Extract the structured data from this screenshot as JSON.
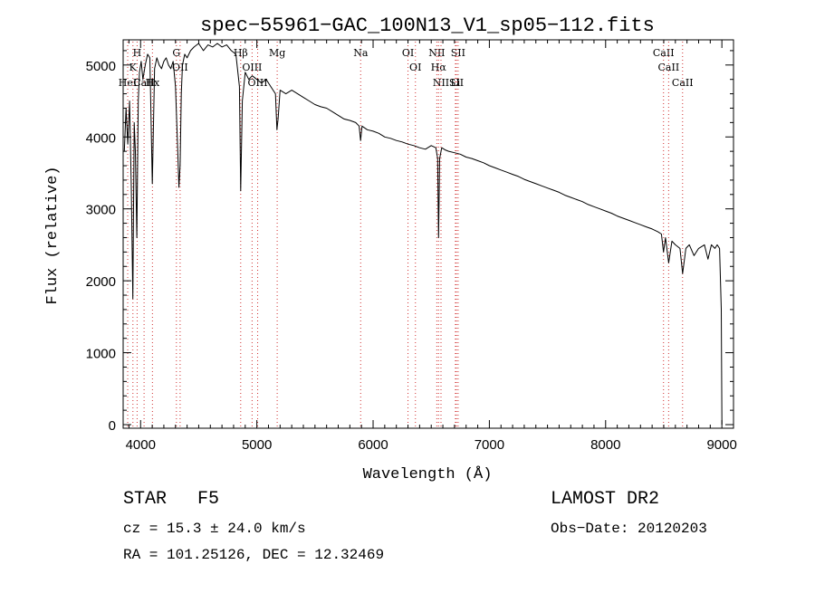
{
  "chart_data": {
    "type": "line",
    "title": "spec−55961−GAC_100N13_V1_sp05−112.fits",
    "xlabel": "Wavelength (Å)",
    "ylabel": "Flux (relative)",
    "xlim": [
      3850,
      9100
    ],
    "ylim": [
      -50,
      5350
    ],
    "xticks": [
      4000,
      5000,
      6000,
      7000,
      8000,
      9000
    ],
    "yticks": [
      0,
      1000,
      2000,
      3000,
      4000,
      5000
    ],
    "grid": false,
    "legend": "none",
    "series": [
      {
        "x": [
          3860,
          3875,
          3890,
          3905,
          3920,
          3933,
          3945,
          3955,
          3968,
          3980,
          3990,
          4005,
          4020,
          4040,
          4060,
          4080,
          4101,
          4120,
          4140,
          4160,
          4180,
          4200,
          4220,
          4240,
          4260,
          4280,
          4300,
          4320,
          4330,
          4340,
          4350,
          4360,
          4380,
          4400,
          4430,
          4460,
          4500,
          4540,
          4580,
          4620,
          4660,
          4700,
          4740,
          4780,
          4820,
          4850,
          4861,
          4875,
          4900,
          4930,
          4960,
          5000,
          5040,
          5080,
          5120,
          5160,
          5173,
          5183,
          5200,
          5250,
          5300,
          5350,
          5400,
          5450,
          5500,
          5550,
          5600,
          5650,
          5700,
          5750,
          5800,
          5850,
          5880,
          5892,
          5905,
          5950,
          6000,
          6050,
          6100,
          6150,
          6200,
          6250,
          6300,
          6350,
          6400,
          6450,
          6500,
          6540,
          6555,
          6563,
          6572,
          6590,
          6620,
          6650,
          6700,
          6750,
          6800,
          6850,
          6900,
          6950,
          7000,
          7050,
          7100,
          7150,
          7200,
          7250,
          7300,
          7350,
          7400,
          7450,
          7500,
          7550,
          7600,
          7650,
          7700,
          7750,
          7800,
          7850,
          7900,
          7950,
          8000,
          8050,
          8100,
          8150,
          8200,
          8250,
          8300,
          8350,
          8400,
          8450,
          8480,
          8498,
          8515,
          8542,
          8570,
          8600,
          8640,
          8662,
          8690,
          8720,
          8760,
          8800,
          8850,
          8880,
          8910,
          8940,
          8960,
          8980,
          8995,
          9000
        ],
        "values": [
          3800,
          4400,
          3900,
          4500,
          3300,
          1750,
          4200,
          3800,
          2600,
          4500,
          4900,
          5050,
          4800,
          5000,
          5150,
          5100,
          3350,
          4950,
          5100,
          5000,
          4950,
          5050,
          5100,
          5000,
          4950,
          5050,
          4700,
          3800,
          3300,
          3600,
          4600,
          5000,
          5150,
          5100,
          5200,
          5250,
          5300,
          5200,
          5280,
          5250,
          5300,
          5250,
          5280,
          5200,
          5150,
          4700,
          3250,
          4500,
          4900,
          4800,
          4850,
          4800,
          4750,
          4800,
          4700,
          4600,
          4100,
          4250,
          4650,
          4600,
          4650,
          4600,
          4550,
          4500,
          4450,
          4420,
          4400,
          4350,
          4300,
          4250,
          4230,
          4200,
          4150,
          3950,
          4150,
          4100,
          4080,
          4050,
          4000,
          3980,
          3950,
          3930,
          3900,
          3880,
          3850,
          3830,
          3880,
          3850,
          3700,
          2600,
          3700,
          3850,
          3820,
          3800,
          3780,
          3760,
          3720,
          3700,
          3670,
          3640,
          3600,
          3570,
          3540,
          3510,
          3480,
          3450,
          3410,
          3380,
          3350,
          3320,
          3290,
          3260,
          3230,
          3190,
          3160,
          3130,
          3100,
          3060,
          3030,
          3000,
          2970,
          2940,
          2900,
          2870,
          2840,
          2810,
          2780,
          2750,
          2720,
          2680,
          2650,
          2400,
          2600,
          2250,
          2550,
          2500,
          2450,
          2100,
          2450,
          2500,
          2350,
          2450,
          2500,
          2300,
          2500,
          2450,
          2500,
          2450,
          1600,
          0
        ]
      }
    ],
    "lines": [
      {
        "label": "H",
        "x": 3970
      },
      {
        "label": "K",
        "x": 3934
      },
      {
        "label": "HeI",
        "x": 3889
      },
      {
        "label": "CaII",
        "x": 4030
      },
      {
        "label": "G",
        "x": 4308
      },
      {
        "label": "OII",
        "x": 4340
      },
      {
        "label": "Hx",
        "x": 4102
      },
      {
        "label": "Hβ",
        "x": 4861
      },
      {
        "label": "OIII",
        "x": 4959
      },
      {
        "label": "OIII",
        "x": 5007
      },
      {
        "label": "Mg",
        "x": 5175
      },
      {
        "label": "Na",
        "x": 5893
      },
      {
        "label": "OI",
        "x": 6300
      },
      {
        "label": "OI",
        "x": 6364
      },
      {
        "label": "NII",
        "x": 6548
      },
      {
        "label": "Hα",
        "x": 6563
      },
      {
        "label": "NII",
        "x": 6584
      },
      {
        "label": "SII",
        "x": 6716
      },
      {
        "label": "SII",
        "x": 6731
      },
      {
        "label": "Li",
        "x": 6708
      },
      {
        "label": "CaII",
        "x": 8498
      },
      {
        "label": "CaII",
        "x": 8542
      },
      {
        "label": "CaII",
        "x": 8662
      }
    ]
  },
  "info": {
    "class_label": "STAR",
    "subclass": "F5",
    "survey": "LAMOST DR2",
    "cz": "cz = 15.3 ± 24.0 km/s",
    "obs_date": "Obs−Date: 20120203",
    "coords": "RA = 101.25126, DEC =  12.32469"
  }
}
